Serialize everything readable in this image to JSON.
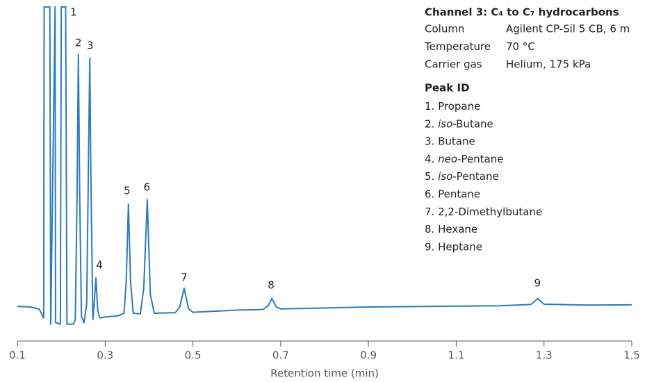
{
  "chart_data": {
    "type": "line",
    "color": "#2b7bba",
    "x_label": "Retention time (min)",
    "xlim": [
      0.1,
      1.5
    ],
    "xticks": [
      0.1,
      0.3,
      0.5,
      0.7,
      0.9,
      1.1,
      1.3,
      1.5
    ],
    "ylim": [
      0,
      100
    ],
    "x": [
      0.1,
      0.13,
      0.15,
      0.158,
      0.16,
      0.161,
      0.174,
      0.176,
      0.186,
      0.187,
      0.198,
      0.2,
      0.21,
      0.213,
      0.228,
      0.232,
      0.236,
      0.239,
      0.242,
      0.246,
      0.252,
      0.258,
      0.262,
      0.265,
      0.268,
      0.272,
      0.275,
      0.279,
      0.283,
      0.288,
      0.3,
      0.33,
      0.343,
      0.348,
      0.353,
      0.358,
      0.364,
      0.38,
      0.388,
      0.396,
      0.403,
      0.412,
      0.46,
      0.47,
      0.48,
      0.49,
      0.5,
      0.6,
      0.66,
      0.672,
      0.68,
      0.69,
      0.7,
      0.9,
      1.2,
      1.27,
      1.286,
      1.3,
      1.4,
      1.5
    ],
    "values": [
      4.2,
      4.0,
      3.3,
      1.0,
      0.5,
      100,
      100,
      -1.5,
      100,
      -1.0,
      -1.5,
      100,
      100,
      -1.5,
      -1.5,
      0,
      40,
      84.9,
      40,
      1,
      -1,
      5,
      50,
      83.6,
      40,
      0,
      5,
      13.3,
      3,
      0.5,
      0.8,
      1.2,
      2,
      12,
      36.9,
      12,
      2,
      1.8,
      10,
      38.4,
      8,
      2,
      2.2,
      4,
      10,
      3.5,
      2.3,
      3,
      3.2,
      4.5,
      6.7,
      4,
      3.4,
      4,
      4.4,
      4.8,
      6.7,
      4.9,
      4.6,
      4.7
    ],
    "annotations": [
      {
        "text": "1",
        "x": 0.228,
        "y": 98.2
      },
      {
        "text": "2",
        "x": 0.239,
        "y": 88.4
      },
      {
        "text": "3",
        "x": 0.266,
        "y": 87.6
      },
      {
        "text": "4",
        "x": 0.287,
        "y": 17.3
      },
      {
        "text": "5",
        "x": 0.35,
        "y": 41.1
      },
      {
        "text": "6",
        "x": 0.395,
        "y": 42.2
      },
      {
        "text": "7",
        "x": 0.48,
        "y": 13.3
      },
      {
        "text": "8",
        "x": 0.678,
        "y": 10.9
      },
      {
        "text": "9",
        "x": 1.285,
        "y": 11.6
      }
    ],
    "info": {
      "title": "Channel 3: C₄ to C₇ hydrocarbons",
      "rows": [
        [
          "Column",
          "Agilent CP-Sil 5 CB, 6 m"
        ],
        [
          "Temperature",
          "70 °C"
        ],
        [
          "Carrier gas",
          "Helium, 175 kPa"
        ]
      ],
      "peak_header": "Peak ID",
      "peaks": [
        {
          "number": "1.",
          "name": "Propane"
        },
        {
          "number": "2.",
          "prefix": "iso",
          "name": "-Butane"
        },
        {
          "number": "3.",
          "name": "Butane"
        },
        {
          "number": "4.",
          "prefix": "neo",
          "name": "-Pentane"
        },
        {
          "number": "5.",
          "prefix": "iso",
          "name": "-Pentane"
        },
        {
          "number": "6.",
          "name": "Pentane"
        },
        {
          "number": "7.",
          "name": "2,2-Dimethylbutane"
        },
        {
          "number": "8.",
          "name": "Hexane"
        },
        {
          "number": "9.",
          "name": "Heptane"
        }
      ]
    }
  }
}
